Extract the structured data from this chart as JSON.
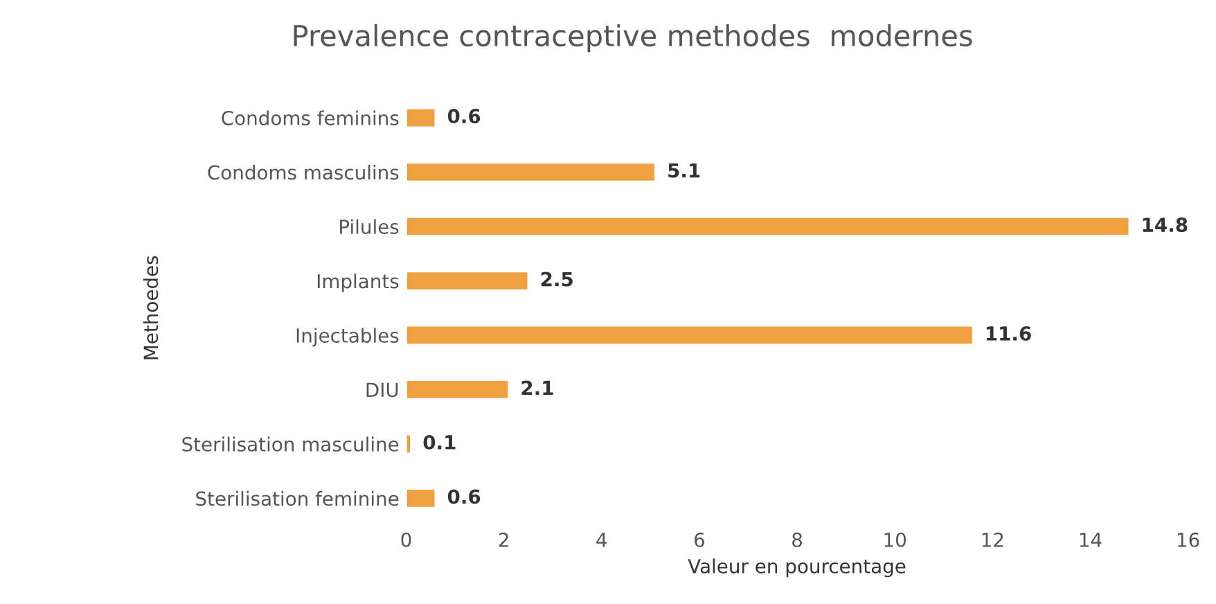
{
  "chart_data": {
    "type": "bar",
    "orientation": "horizontal",
    "title": "Prevalence contraceptive methodes  modernes",
    "xlabel": "Valeur en pourcentage",
    "ylabel": "Methoedes",
    "categories": [
      "Condoms feminins",
      "Condoms masculins",
      "Pilules",
      "Implants",
      "Injectables",
      "DIU",
      "Sterilisation masculine",
      "Sterilisation feminine"
    ],
    "values": [
      0.6,
      5.1,
      14.8,
      2.5,
      11.6,
      2.1,
      0.1,
      0.6
    ],
    "color": "#f0a040",
    "xlim": [
      0,
      16
    ],
    "xticks": [
      0,
      2,
      4,
      6,
      8,
      10,
      12,
      14,
      16
    ],
    "grid": false,
    "data_labels": true
  }
}
